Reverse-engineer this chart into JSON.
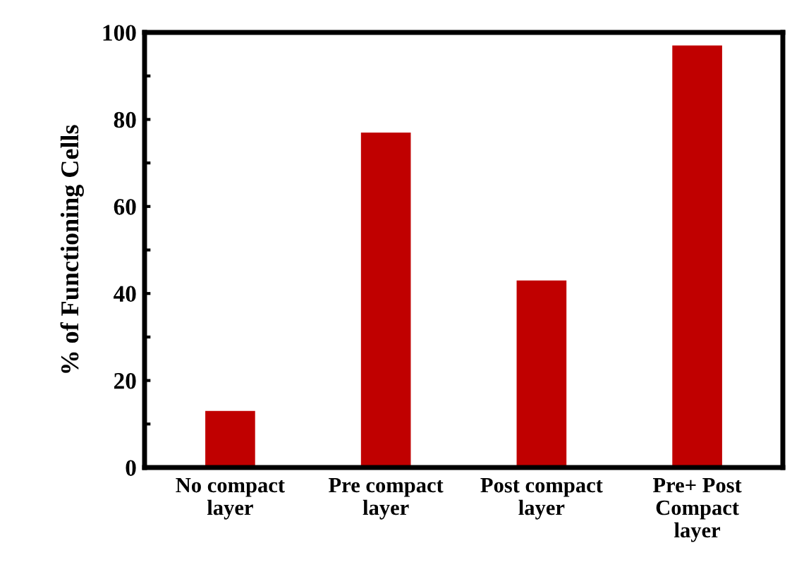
{
  "chart_data": {
    "type": "bar",
    "ylabel": "% of Functioning Cells",
    "categories": [
      "No compact\nlayer",
      "Pre compact\nlayer",
      "Post compact\nlayer",
      "Pre+ Post\nCompact\nlayer"
    ],
    "values": [
      13,
      77,
      43,
      97
    ],
    "color": "#c00000",
    "ylim": [
      0,
      100
    ],
    "yticks": [
      0,
      {
        "value": 10,
        "label": null
      },
      20,
      {
        "value": 30,
        "label": null
      },
      40,
      {
        "value": 50,
        "label": null
      },
      60,
      {
        "value": 70,
        "label": null
      },
      80,
      {
        "value": 90,
        "label": null
      },
      100
    ],
    "grid": false
  }
}
